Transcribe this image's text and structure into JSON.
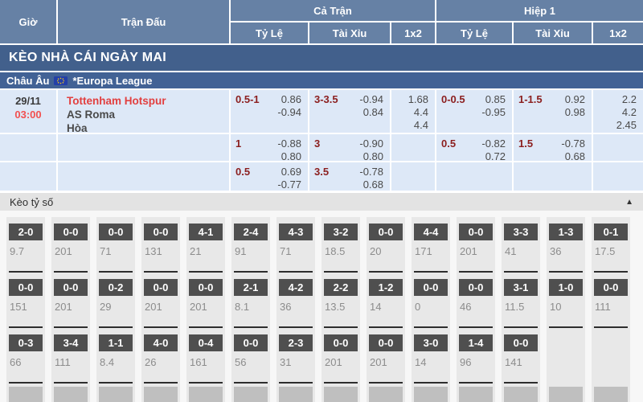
{
  "table_header": {
    "time": "Giờ",
    "match": "Trận Đấu",
    "full_time": "Cả Trận",
    "first_half": "Hiệp 1",
    "handicap": "Tỷ Lệ",
    "over_under": "Tài Xỉu",
    "one_x_two": "1x2"
  },
  "banner": {
    "title": "KÈO NHÀ CÁI NGÀY MAI"
  },
  "league": {
    "region": "Châu Âu",
    "name": "*Europa League",
    "flag": "eu-flag-icon"
  },
  "match": {
    "date": "29/11",
    "time": "03:00",
    "home": "Tottenham Hotspur",
    "away": "AS Roma",
    "draw_label": "Hòa",
    "rows": [
      {
        "ft_hdp": "0.5-1",
        "ft_hdp_odds": [
          "0.86",
          "-0.94"
        ],
        "ft_ou": "3-3.5",
        "ft_ou_odds": [
          "-0.94",
          "0.84"
        ],
        "ft_1x2": [
          "1.68",
          "4.4",
          "4.4"
        ],
        "h1_hdp": "0-0.5",
        "h1_hdp_odds": [
          "0.85",
          "-0.95"
        ],
        "h1_ou": "1-1.5",
        "h1_ou_odds": [
          "0.92",
          "0.98"
        ],
        "h1_1x2": [
          "2.2",
          "4.2",
          "2.45"
        ]
      },
      {
        "ft_hdp": "1",
        "ft_hdp_odds": [
          "-0.88",
          "0.80"
        ],
        "ft_ou": "3",
        "ft_ou_odds": [
          "-0.90",
          "0.80"
        ],
        "h1_hdp": "0.5",
        "h1_hdp_odds": [
          "-0.82",
          "0.72"
        ],
        "h1_ou": "1.5",
        "h1_ou_odds": [
          "-0.78",
          "0.68"
        ]
      },
      {
        "ft_hdp": "0.5",
        "ft_hdp_odds": [
          "0.69",
          "-0.77"
        ],
        "ft_ou": "3.5",
        "ft_ou_odds": [
          "-0.78",
          "0.68"
        ]
      }
    ]
  },
  "score_section": {
    "title": "Kèo tỷ số",
    "collapse_icon": "▲"
  },
  "scores": {
    "rows": [
      [
        {
          "score": "2-0",
          "odds": "9.7"
        },
        {
          "score": "0-0",
          "odds": "201"
        },
        {
          "score": "0-0",
          "odds": "71"
        },
        {
          "score": "0-0",
          "odds": "131"
        },
        {
          "score": "4-1",
          "odds": "21"
        },
        {
          "score": "2-4",
          "odds": "91"
        },
        {
          "score": "4-3",
          "odds": "71"
        },
        {
          "score": "3-2",
          "odds": "18.5"
        },
        {
          "score": "0-0",
          "odds": "20"
        },
        {
          "score": "4-4",
          "odds": "171"
        },
        {
          "score": "0-0",
          "odds": "201"
        },
        {
          "score": "3-3",
          "odds": "41"
        },
        {
          "score": "1-3",
          "odds": "36"
        },
        {
          "score": "0-1",
          "odds": "17.5"
        }
      ],
      [
        {
          "score": "0-0",
          "odds": "151"
        },
        {
          "score": "0-0",
          "odds": "201"
        },
        {
          "score": "0-2",
          "odds": "29"
        },
        {
          "score": "0-0",
          "odds": "201"
        },
        {
          "score": "0-0",
          "odds": "201"
        },
        {
          "score": "2-1",
          "odds": "8.1"
        },
        {
          "score": "4-2",
          "odds": "36"
        },
        {
          "score": "2-2",
          "odds": "13.5"
        },
        {
          "score": "1-2",
          "odds": "14"
        },
        {
          "score": "0-0",
          "odds": "0"
        },
        {
          "score": "0-0",
          "odds": "46"
        },
        {
          "score": "3-1",
          "odds": "11.5"
        },
        {
          "score": "1-0",
          "odds": "10"
        },
        {
          "score": "0-0",
          "odds": "111"
        }
      ],
      [
        {
          "score": "0-3",
          "odds": "66"
        },
        {
          "score": "3-4",
          "odds": "111"
        },
        {
          "score": "1-1",
          "odds": "8.4"
        },
        {
          "score": "4-0",
          "odds": "26"
        },
        {
          "score": "0-4",
          "odds": "161"
        },
        {
          "score": "0-0",
          "odds": "56"
        },
        {
          "score": "2-3",
          "odds": "31"
        },
        {
          "score": "0-0",
          "odds": "201"
        },
        {
          "score": "0-0",
          "odds": "201"
        },
        {
          "score": "3-0",
          "odds": "14"
        },
        {
          "score": "1-4",
          "odds": "96"
        },
        {
          "score": "0-0",
          "odds": "141"
        },
        null,
        null
      ]
    ]
  },
  "colors": {
    "header_bg": "#6681a5",
    "banner_bg": "#42608c",
    "league_bg": "#426295",
    "row_bg": "#dde8f7",
    "handicap_red": "#8b1e1e",
    "team_highlight_red": "#e23f3f",
    "time_red": "#f25050",
    "score_badge_bg": "#4f4f4f"
  }
}
